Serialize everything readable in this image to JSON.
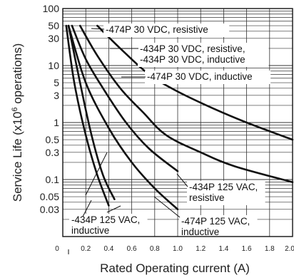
{
  "chart_data": {
    "type": "line",
    "title": "",
    "xlabel": "Rated Operating current (A)",
    "ylabel_main": "Service Life (x10",
    "ylabel_sup": "6",
    "ylabel_tail": " operations)",
    "xlim": [
      0,
      2.0
    ],
    "ylim": [
      0.01,
      100
    ],
    "y_scale": "log",
    "grid": true,
    "x_ticks": [
      "0",
      "0.2",
      "0.4",
      "0.6",
      "0.8",
      "1.0",
      "1.2",
      "1.4",
      "1.6",
      "1.8",
      "2.0"
    ],
    "y_ticks": [
      {
        "label": "100",
        "value": 100
      },
      {
        "label": "50",
        "value": 50
      },
      {
        "label": "30",
        "value": 30
      },
      {
        "label": "10",
        "value": 10
      },
      {
        "label": "5",
        "value": 5
      },
      {
        "label": "3",
        "value": 3
      },
      {
        "label": "1",
        "value": 1
      },
      {
        "label": "0.5",
        "value": 0.5
      },
      {
        "label": "0.3",
        "value": 0.3
      },
      {
        "label": "0.1",
        "value": 0.1
      },
      {
        "label": "0.05",
        "value": 0.05
      },
      {
        "label": "0.03",
        "value": 0.03
      }
    ],
    "series": [
      {
        "name": "-474P 30 VDC, resistive",
        "points": [
          [
            0.3,
            50
          ],
          [
            0.5,
            20
          ],
          [
            0.75,
            7
          ],
          [
            1.0,
            3.5
          ],
          [
            1.3,
            1.8
          ],
          [
            1.6,
            1.0
          ],
          [
            2.0,
            0.5
          ]
        ]
      },
      {
        "name": "-434P 30 VDC, resistive, -434P 30 VDC, inductive",
        "points": [
          [
            0.15,
            50
          ],
          [
            0.3,
            15
          ],
          [
            0.5,
            4
          ],
          [
            0.7,
            1.5
          ],
          [
            0.9,
            0.6
          ],
          [
            1.2,
            0.3
          ],
          [
            1.5,
            0.17
          ],
          [
            2.0,
            0.09
          ]
        ]
      },
      {
        "name": "-474P 30 VDC, inductive",
        "points": [
          [
            0.08,
            50
          ],
          [
            0.2,
            13
          ],
          [
            0.35,
            4
          ],
          [
            0.55,
            1.0
          ],
          [
            0.75,
            0.35
          ],
          [
            1.0,
            0.14
          ]
        ]
      },
      {
        "name": "-434P 125 VAC, resistive",
        "points": [
          [
            0.05,
            50
          ],
          [
            0.2,
            5
          ],
          [
            0.4,
            0.8
          ],
          [
            0.6,
            0.2
          ],
          [
            0.8,
            0.07
          ],
          [
            1.0,
            0.03
          ]
        ]
      },
      {
        "name": "-474P 125 VAC, inductive",
        "points": [
          [
            0.05,
            50
          ],
          [
            0.15,
            5
          ],
          [
            0.25,
            0.6
          ],
          [
            0.35,
            0.12
          ],
          [
            0.45,
            0.045
          ]
        ]
      },
      {
        "name": "-434P 125 VAC, inductive",
        "points": [
          [
            0.03,
            50
          ],
          [
            0.1,
            5
          ],
          [
            0.2,
            0.6
          ],
          [
            0.3,
            0.12
          ],
          [
            0.4,
            0.035
          ]
        ]
      }
    ],
    "annotations": [
      {
        "lines": [
          "-474P 30 VDC, resistive"
        ]
      },
      {
        "lines": [
          "-434P 30 VDC, resistive,",
          "-434P 30 VDC, inductive"
        ]
      },
      {
        "lines": [
          "-474P 30 VDC, inductive"
        ]
      },
      {
        "lines": [
          "-434P 125 VAC,",
          "resistive"
        ]
      },
      {
        "lines": [
          "-434P 125 VAC,",
          "inductive"
        ]
      },
      {
        "lines": [
          "-474P 125 VAC,",
          "inductive"
        ]
      }
    ]
  }
}
